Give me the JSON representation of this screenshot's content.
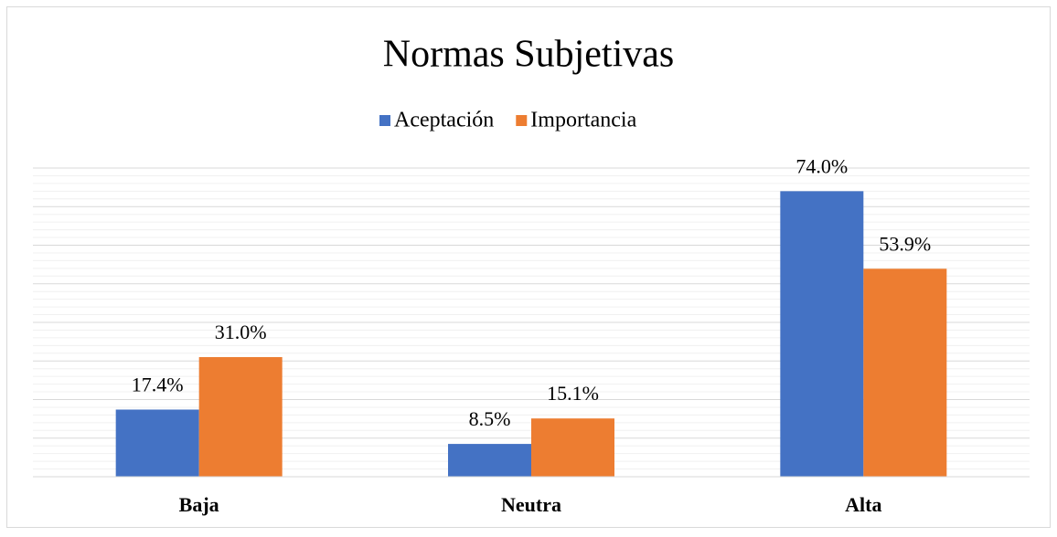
{
  "chart_data": {
    "type": "bar",
    "title": "Normas Subjetivas",
    "categories": [
      "Baja",
      "Neutra",
      "Alta"
    ],
    "series": [
      {
        "name": "Aceptación",
        "color": "#4472c4",
        "values": [
          17.4,
          8.5,
          74.0
        ],
        "value_labels": [
          "17.4%",
          "8.5%",
          "74.0%"
        ]
      },
      {
        "name": "Importancia",
        "color": "#ed7d31",
        "values": [
          31.0,
          15.1,
          53.9
        ],
        "value_labels": [
          "31.0%",
          "15.1%",
          "53.9%"
        ]
      }
    ],
    "ylim": [
      0,
      80
    ],
    "yticks": [
      0,
      10,
      20,
      30,
      40,
      50,
      60,
      70,
      80
    ],
    "grid": true,
    "legend": "top"
  }
}
